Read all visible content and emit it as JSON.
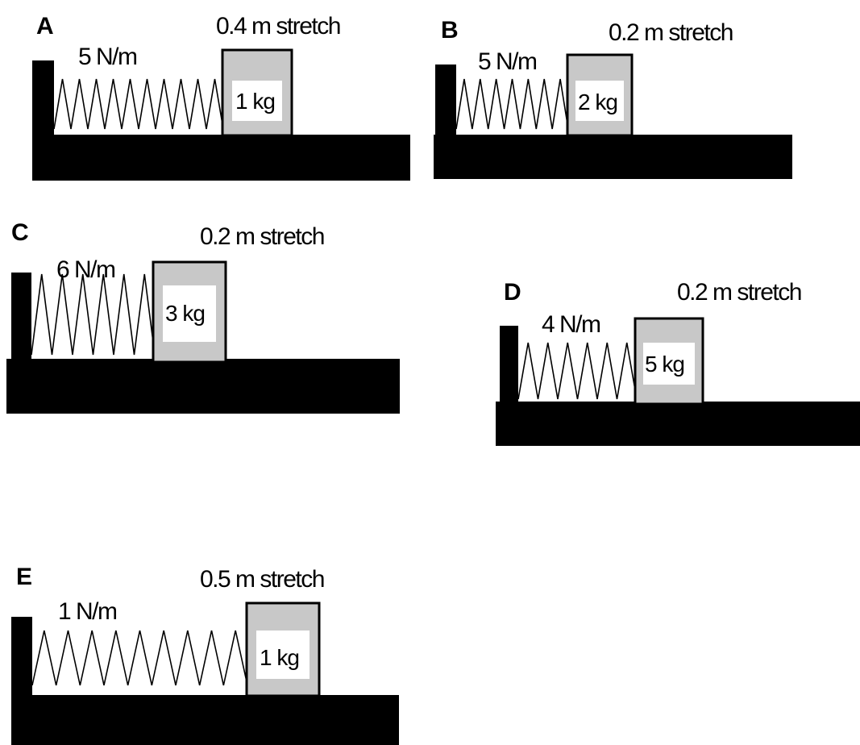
{
  "colors": {
    "ground": "#000000",
    "block_fill": "#c8c8c8",
    "block_label_background": "#ffffff"
  },
  "panels": [
    {
      "letter": "A",
      "spring_constant": "5 N/m",
      "stretch": "0.4 m stretch",
      "mass": "1 kg"
    },
    {
      "letter": "B",
      "spring_constant": "5 N/m",
      "stretch": "0.2 m stretch",
      "mass": "2 kg"
    },
    {
      "letter": "C",
      "spring_constant": "6 N/m",
      "stretch": "0.2 m stretch",
      "mass": "3 kg"
    },
    {
      "letter": "D",
      "spring_constant": "4 N/m",
      "stretch": "0.2 m stretch",
      "mass": "5 kg"
    },
    {
      "letter": "E",
      "spring_constant": "1 N/m",
      "stretch": "0.5 m stretch",
      "mass": "1 kg"
    }
  ]
}
